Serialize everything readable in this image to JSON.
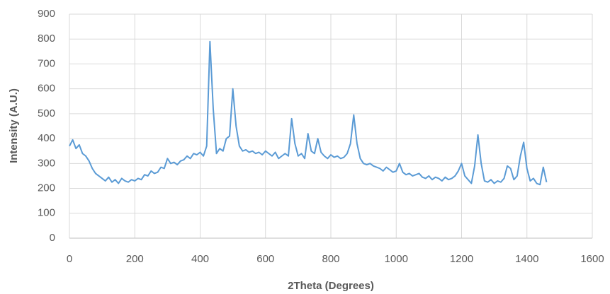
{
  "chart_data": {
    "type": "line",
    "x_label": "2Theta (Degrees)",
    "y_label": "Intensity (A.U.)",
    "x": [
      0,
      10,
      20,
      30,
      40,
      50,
      60,
      70,
      80,
      90,
      100,
      110,
      120,
      130,
      140,
      150,
      160,
      170,
      180,
      190,
      200,
      210,
      220,
      230,
      240,
      250,
      260,
      270,
      280,
      290,
      300,
      310,
      320,
      330,
      340,
      350,
      360,
      370,
      380,
      390,
      400,
      410,
      420,
      430,
      440,
      450,
      460,
      470,
      480,
      490,
      500,
      510,
      520,
      530,
      540,
      550,
      560,
      570,
      580,
      590,
      600,
      610,
      620,
      630,
      640,
      650,
      660,
      670,
      680,
      690,
      700,
      710,
      720,
      730,
      740,
      750,
      760,
      770,
      780,
      790,
      800,
      810,
      820,
      830,
      840,
      850,
      860,
      870,
      880,
      890,
      900,
      910,
      920,
      930,
      940,
      950,
      960,
      970,
      980,
      990,
      1000,
      1010,
      1020,
      1030,
      1040,
      1050,
      1060,
      1070,
      1080,
      1090,
      1100,
      1110,
      1120,
      1130,
      1140,
      1150,
      1160,
      1170,
      1180,
      1190,
      1200,
      1210,
      1220,
      1230,
      1240,
      1250,
      1260,
      1270,
      1280,
      1290,
      1300,
      1310,
      1320,
      1330,
      1340,
      1350,
      1360,
      1370,
      1380,
      1390,
      1400,
      1410,
      1420,
      1430,
      1440,
      1450,
      1460
    ],
    "series": [
      {
        "color": "#5b9bd5",
        "values": [
          370,
          395,
          360,
          375,
          340,
          330,
          310,
          280,
          260,
          250,
          240,
          230,
          245,
          225,
          235,
          220,
          240,
          230,
          225,
          235,
          230,
          240,
          235,
          255,
          250,
          270,
          260,
          265,
          285,
          280,
          320,
          300,
          305,
          295,
          310,
          315,
          330,
          320,
          340,
          335,
          345,
          330,
          370,
          790,
          520,
          340,
          360,
          350,
          400,
          410,
          600,
          450,
          370,
          350,
          355,
          345,
          350,
          340,
          345,
          335,
          350,
          340,
          330,
          345,
          320,
          330,
          340,
          330,
          480,
          380,
          330,
          340,
          320,
          420,
          350,
          340,
          400,
          345,
          330,
          320,
          335,
          325,
          330,
          320,
          325,
          340,
          380,
          495,
          380,
          320,
          300,
          295,
          300,
          290,
          285,
          280,
          270,
          285,
          275,
          265,
          270,
          300,
          265,
          255,
          260,
          250,
          255,
          260,
          245,
          240,
          250,
          235,
          245,
          240,
          230,
          245,
          235,
          240,
          250,
          270,
          300,
          250,
          235,
          220,
          290,
          415,
          300,
          230,
          225,
          235,
          220,
          230,
          225,
          240,
          290,
          280,
          235,
          250,
          330,
          385,
          280,
          230,
          240,
          220,
          215,
          285,
          225
        ]
      }
    ],
    "xlim": [
      0,
      1600
    ],
    "xticks": [
      0,
      200,
      400,
      600,
      800,
      1000,
      1200,
      1400,
      1600
    ],
    "ylim": [
      0,
      900
    ],
    "yticks": [
      0,
      100,
      200,
      300,
      400,
      500,
      600,
      700,
      800,
      900
    ],
    "grid": true
  }
}
